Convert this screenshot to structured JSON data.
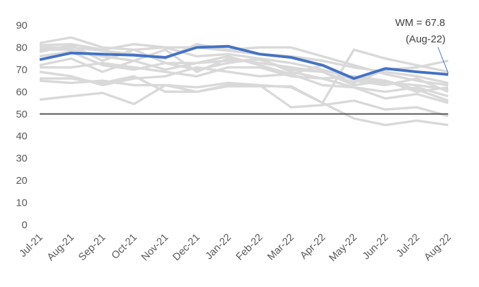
{
  "chart_data": {
    "type": "line",
    "categories": [
      "Jul-21",
      "Aug-21",
      "Sep-21",
      "Oct-21",
      "Nov-21",
      "Dec-21",
      "Jan-22",
      "Feb-22",
      "Mar-22",
      "Apr-22",
      "May-22",
      "Jun-22",
      "Jul-22",
      "Aug-22"
    ],
    "ylim": [
      0,
      90
    ],
    "yticks": [
      0,
      10,
      20,
      30,
      40,
      50,
      60,
      70,
      80,
      90
    ],
    "grid": false,
    "reference_line": {
      "y": 50,
      "color": "#595959"
    },
    "highlight_series": {
      "values": [
        74.5,
        77.5,
        77.0,
        76.5,
        75.5,
        80.0,
        80.5,
        77.0,
        75.5,
        72.0,
        66.0,
        70.5,
        69.0,
        67.8
      ],
      "color": "#4472C4"
    },
    "background_series": [
      {
        "values": [
          82,
          84.5,
          80,
          79,
          80,
          76,
          77,
          75,
          73,
          70,
          66,
          64,
          63,
          61
        ]
      },
      {
        "values": [
          81,
          81.5,
          79,
          81.5,
          80,
          80,
          78.5,
          77,
          76,
          74,
          71,
          69,
          67,
          64
        ]
      },
      {
        "values": [
          80,
          80,
          78.5,
          77,
          75,
          81.5,
          79,
          80,
          80,
          76,
          72,
          68,
          65,
          63
        ]
      },
      {
        "values": [
          79,
          79,
          76,
          74,
          79,
          69,
          75,
          73,
          71,
          69,
          64,
          70,
          71,
          74
        ]
      },
      {
        "values": [
          78,
          81,
          74,
          79,
          73,
          70,
          73,
          75,
          69,
          66,
          62,
          60,
          62,
          58
        ]
      },
      {
        "values": [
          76,
          78,
          72,
          70,
          73,
          73,
          76,
          72,
          68,
          72,
          65,
          63,
          66,
          60
        ]
      },
      {
        "values": [
          72,
          75,
          69,
          74,
          70,
          73,
          74,
          74.5,
          70,
          69,
          63,
          65,
          60,
          62
        ]
      },
      {
        "values": [
          71,
          71,
          73,
          71,
          69,
          67,
          71,
          71,
          67,
          66,
          67,
          65,
          61,
          56
        ]
      },
      {
        "values": [
          69,
          67,
          63,
          66,
          67,
          71,
          69,
          67,
          68,
          63,
          62,
          57,
          59,
          55
        ]
      },
      {
        "values": [
          66,
          66,
          64,
          67,
          60,
          60,
          63,
          63,
          53,
          54,
          56,
          52,
          53,
          49
        ]
      },
      {
        "values": [
          65,
          64,
          65,
          63,
          63,
          62,
          64,
          63,
          62,
          55,
          48,
          45,
          47,
          45
        ]
      },
      {
        "values": [
          56.5,
          58,
          59.5,
          54.5,
          63,
          60,
          62.5,
          62.5,
          62.5,
          55,
          79,
          75,
          72,
          69
        ]
      }
    ],
    "background_color": "#D9D9D9",
    "annotation": {
      "line1": "WM = 67.8",
      "line2": "(Aug-22)",
      "target_category": "Aug-22",
      "target_value": 67.8
    }
  }
}
